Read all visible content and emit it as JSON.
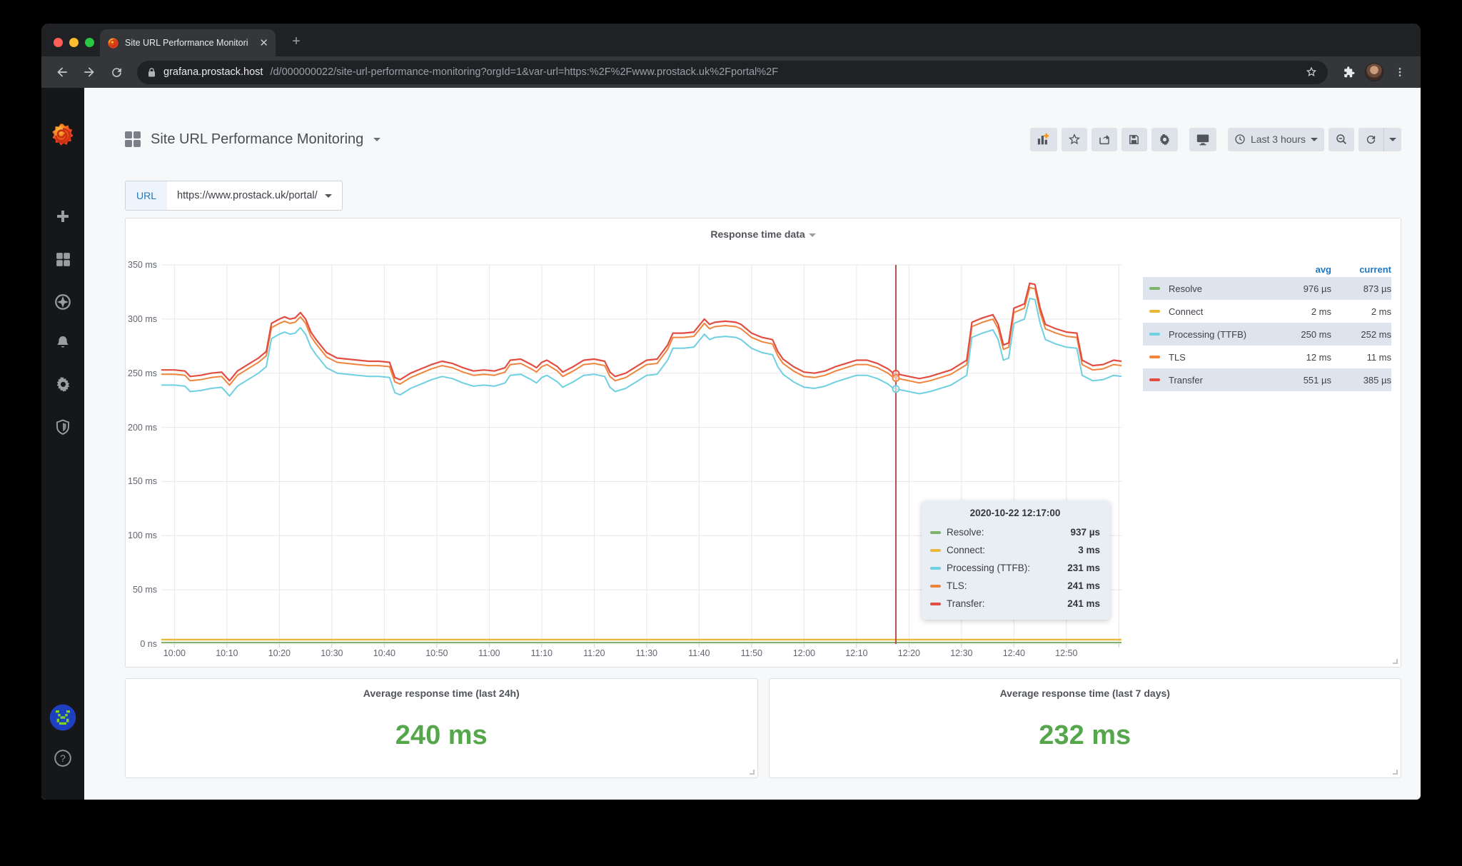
{
  "browser": {
    "tab": {
      "title": "Site URL Performance Monitori",
      "close_glyph": "✕"
    },
    "new_tab_glyph": "+",
    "address": {
      "host": "grafana.prostack.host",
      "path": "/d/000000022/site-url-performance-monitoring?orgId=1&var-url=https:%2F%2Fwww.prostack.uk%2Fportal%2F"
    }
  },
  "sidebar": {
    "icons": [
      "grafana-logo",
      "create-plus",
      "dashboards-grid",
      "explore-compass",
      "alerting-bell",
      "configuration-gear",
      "server-admin-shield",
      "user-avatar",
      "help-question"
    ]
  },
  "header": {
    "dashboard_title": "Site URL Performance Monitoring",
    "time_range_label": "Last 3 hours",
    "toolbar_buttons": [
      "add-panel",
      "mark-favorite",
      "share-dashboard",
      "save-dashboard",
      "dashboard-settings",
      "cycle-view-mode",
      "time-range-picker",
      "zoom-out-time",
      "refresh",
      "refresh-interval"
    ]
  },
  "submenu": {
    "variable_label": "URL",
    "variable_value": "https://www.prostack.uk/portal/"
  },
  "graph_panel": {
    "title": "Response time data"
  },
  "legend": {
    "headers": {
      "avg": "avg",
      "current": "current"
    },
    "rows": [
      {
        "label": "Resolve",
        "color": "#7EB26D",
        "avg": "976 µs",
        "current": "873 µs"
      },
      {
        "label": "Connect",
        "color": "#EAB839",
        "avg": "2 ms",
        "current": "2 ms"
      },
      {
        "label": "Processing (TTFB)",
        "color": "#6ED0E0",
        "avg": "250 ms",
        "current": "252 ms"
      },
      {
        "label": "TLS",
        "color": "#EF843C",
        "avg": "12 ms",
        "current": "11 ms"
      },
      {
        "label": "Transfer",
        "color": "#E24D42",
        "avg": "551 µs",
        "current": "385 µs"
      }
    ]
  },
  "tooltip": {
    "timestamp": "2020-10-22 12:17:00",
    "rows": [
      {
        "label": "Resolve:",
        "color": "#7EB26D",
        "value": "937 µs"
      },
      {
        "label": "Connect:",
        "color": "#EAB839",
        "value": "3 ms"
      },
      {
        "label": "Processing (TTFB):",
        "color": "#6ED0E0",
        "value": "231 ms"
      },
      {
        "label": "TLS:",
        "color": "#EF843C",
        "value": "241 ms"
      },
      {
        "label": "Transfer:",
        "color": "#E24D42",
        "value": "241 ms"
      }
    ]
  },
  "stat_panels": [
    {
      "title": "Average response time (last 24h)",
      "value": "240 ms",
      "color": "#56A64B"
    },
    {
      "title": "Average response time (last 7 days)",
      "value": "232 ms",
      "color": "#56A64B"
    }
  ],
  "colors": {
    "accent_blue": "#1F78C1",
    "stat_green": "#56A64B",
    "crosshair": "#B0524B",
    "grid": "#E7E7E7"
  },
  "chart_data": {
    "type": "line",
    "title": "Response time data",
    "stacked": true,
    "note": "Series point values are cumulative stacked display values in ms; x is minutes after 10:00",
    "x_domain_minutes": [
      -2.5,
      180.5
    ],
    "ylim_ms": [
      0,
      350
    ],
    "ygrid_ms": [
      0,
      50,
      100,
      150,
      200,
      250,
      300,
      350
    ],
    "yticks": [
      {
        "ms": 0,
        "label": "0 ns"
      },
      {
        "ms": 50,
        "label": "50 ms"
      },
      {
        "ms": 100,
        "label": "100 ms"
      },
      {
        "ms": 150,
        "label": "150 ms"
      },
      {
        "ms": 200,
        "label": "200 ms"
      },
      {
        "ms": 250,
        "label": "250 ms"
      },
      {
        "ms": 300,
        "label": "300 ms"
      },
      {
        "ms": 350,
        "label": "350 ms"
      }
    ],
    "xgrid_minutes": [
      0,
      10,
      20,
      30,
      40,
      50,
      60,
      70,
      80,
      90,
      100,
      110,
      120,
      130,
      140,
      150,
      160,
      170,
      180
    ],
    "xticks": [
      {
        "m": 0,
        "label": "10:00"
      },
      {
        "m": 10,
        "label": "10:10"
      },
      {
        "m": 20,
        "label": "10:20"
      },
      {
        "m": 30,
        "label": "10:30"
      },
      {
        "m": 40,
        "label": "10:40"
      },
      {
        "m": 50,
        "label": "10:50"
      },
      {
        "m": 60,
        "label": "11:00"
      },
      {
        "m": 70,
        "label": "11:10"
      },
      {
        "m": 80,
        "label": "11:20"
      },
      {
        "m": 90,
        "label": "11:30"
      },
      {
        "m": 100,
        "label": "11:40"
      },
      {
        "m": 110,
        "label": "11:50"
      },
      {
        "m": 120,
        "label": "12:00"
      },
      {
        "m": 130,
        "label": "12:10"
      },
      {
        "m": 140,
        "label": "12:20"
      },
      {
        "m": 150,
        "label": "12:30"
      },
      {
        "m": 160,
        "label": "12:40"
      },
      {
        "m": 170,
        "label": "12:50"
      }
    ],
    "crosshair": {
      "time": "12:17",
      "minute": 137.5,
      "dot_series": [
        "Transfer",
        "TLS",
        "Processing (TTFB)"
      ]
    },
    "series": [
      {
        "name": "Resolve",
        "color": "#7EB26D",
        "width": 2,
        "points": [
          [
            -2.5,
            1.3
          ],
          [
            180.5,
            1.3
          ]
        ]
      },
      {
        "name": "Connect",
        "color": "#EAB839",
        "width": 2.4,
        "points": [
          [
            -2.5,
            4
          ],
          [
            180.5,
            4
          ]
        ]
      },
      {
        "name": "Processing (TTFB)",
        "color": "#6ED0E0",
        "width": 2,
        "derive_from": "Transfer",
        "offset_ms": -14
      },
      {
        "name": "TLS",
        "color": "#EF843C",
        "width": 2,
        "derive_from": "Transfer",
        "offset_ms": -4
      },
      {
        "name": "Transfer",
        "color": "#E24D42",
        "width": 2.2,
        "points": [
          [
            -2.5,
            253
          ],
          [
            0,
            253
          ],
          [
            2,
            252
          ],
          [
            3,
            247
          ],
          [
            5,
            248
          ],
          [
            7,
            250
          ],
          [
            9,
            251
          ],
          [
            10.5,
            243
          ],
          [
            12,
            252
          ],
          [
            14,
            258
          ],
          [
            16,
            264
          ],
          [
            17.5,
            270
          ],
          [
            18.5,
            296
          ],
          [
            20,
            300
          ],
          [
            21,
            302
          ],
          [
            22,
            300
          ],
          [
            23,
            301
          ],
          [
            24,
            306
          ],
          [
            25,
            300
          ],
          [
            26,
            288
          ],
          [
            27,
            281
          ],
          [
            29,
            269
          ],
          [
            31,
            264
          ],
          [
            33,
            263
          ],
          [
            35,
            262
          ],
          [
            37,
            261
          ],
          [
            39,
            261
          ],
          [
            41,
            260
          ],
          [
            42,
            246
          ],
          [
            43,
            244
          ],
          [
            45,
            250
          ],
          [
            47,
            254
          ],
          [
            49,
            258
          ],
          [
            51,
            261
          ],
          [
            53,
            259
          ],
          [
            55,
            255
          ],
          [
            57,
            252
          ],
          [
            59,
            253
          ],
          [
            61,
            252
          ],
          [
            63,
            255
          ],
          [
            64,
            262
          ],
          [
            66,
            263
          ],
          [
            68,
            258
          ],
          [
            69,
            255
          ],
          [
            70,
            260
          ],
          [
            71,
            262
          ],
          [
            73,
            256
          ],
          [
            74,
            251
          ],
          [
            76,
            256
          ],
          [
            78,
            262
          ],
          [
            80,
            263
          ],
          [
            82,
            261
          ],
          [
            83,
            251
          ],
          [
            84,
            247
          ],
          [
            86,
            250
          ],
          [
            88,
            256
          ],
          [
            90,
            262
          ],
          [
            92,
            263
          ],
          [
            94,
            276
          ],
          [
            95,
            287
          ],
          [
            97,
            287
          ],
          [
            99,
            288
          ],
          [
            101,
            300
          ],
          [
            102,
            295
          ],
          [
            103,
            297
          ],
          [
            105,
            298
          ],
          [
            107,
            297
          ],
          [
            108,
            295
          ],
          [
            110,
            287
          ],
          [
            112,
            283
          ],
          [
            114,
            281
          ],
          [
            115,
            270
          ],
          [
            116,
            263
          ],
          [
            118,
            256
          ],
          [
            120,
            251
          ],
          [
            122,
            250
          ],
          [
            124,
            252
          ],
          [
            126,
            256
          ],
          [
            128,
            259
          ],
          [
            130,
            262
          ],
          [
            132,
            262
          ],
          [
            134,
            259
          ],
          [
            136,
            254
          ],
          [
            137,
            250
          ],
          [
            138,
            249
          ],
          [
            140,
            247
          ],
          [
            142,
            245
          ],
          [
            144,
            247
          ],
          [
            146,
            250
          ],
          [
            148,
            253
          ],
          [
            150,
            259
          ],
          [
            151,
            262
          ],
          [
            152,
            297
          ],
          [
            154,
            301
          ],
          [
            156,
            304
          ],
          [
            157,
            295
          ],
          [
            158,
            276
          ],
          [
            159,
            278
          ],
          [
            160,
            310
          ],
          [
            161,
            312
          ],
          [
            162,
            314
          ],
          [
            163,
            333
          ],
          [
            164,
            332
          ],
          [
            165,
            310
          ],
          [
            166,
            295
          ],
          [
            168,
            291
          ],
          [
            170,
            288
          ],
          [
            172,
            287
          ],
          [
            173,
            262
          ],
          [
            175,
            257
          ],
          [
            177,
            258
          ],
          [
            179,
            262
          ],
          [
            180.5,
            261
          ]
        ]
      }
    ]
  }
}
